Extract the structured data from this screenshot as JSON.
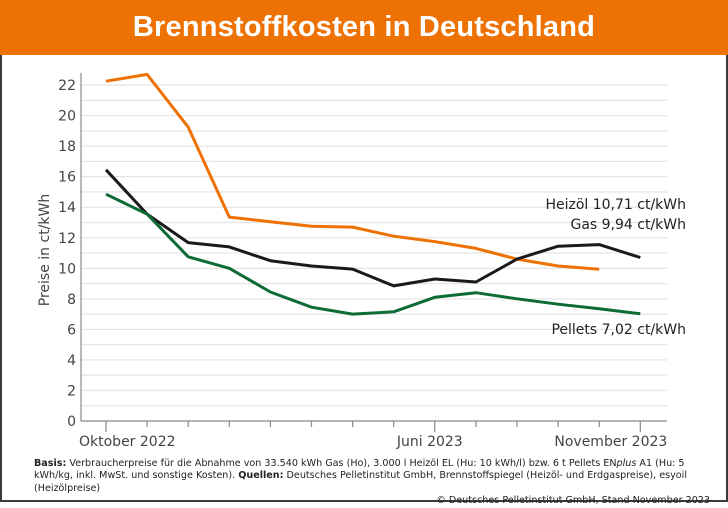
{
  "chart_data": {
    "type": "line",
    "title": "Brennstoffkosten in Deutschland",
    "xlabel": "",
    "ylabel": "Preise in ct/kWh",
    "ylim": [
      0,
      22.8
    ],
    "yticks": [
      0,
      2,
      4,
      6,
      8,
      10,
      12,
      14,
      16,
      18,
      20,
      22
    ],
    "grid": true,
    "x": [
      "Okt 2022",
      "Nov 2022",
      "Dez 2022",
      "Jan 2023",
      "Feb 2023",
      "Mär 2023",
      "Apr 2023",
      "Mai 2023",
      "Jun 2023",
      "Jul 2023",
      "Aug 2023",
      "Sep 2023",
      "Okt 2023",
      "Nov 2023"
    ],
    "xtick_labels": [
      {
        "index": 0,
        "label": "Oktober 2022"
      },
      {
        "index": 8,
        "label": "Juni 2023"
      },
      {
        "index": 13,
        "label": "November 2023"
      }
    ],
    "series": [
      {
        "name": "Gas",
        "color": "#ee7203",
        "values": [
          22.25,
          22.7,
          19.25,
          13.35,
          13.05,
          12.75,
          12.7,
          12.1,
          11.75,
          11.3,
          10.6,
          10.15,
          9.94,
          null
        ],
        "end_label": "Gas 9,94 ct/kWh"
      },
      {
        "name": "Heizöl",
        "color": "#1a1a1a",
        "values": [
          16.45,
          13.55,
          11.68,
          11.4,
          10.5,
          10.15,
          9.95,
          8.85,
          9.3,
          9.1,
          10.6,
          11.45,
          11.55,
          10.71
        ],
        "end_label": "Heizöl 10,71 ct/kWh"
      },
      {
        "name": "Pellets",
        "color": "#0d6b35",
        "values": [
          14.85,
          13.55,
          10.75,
          10.0,
          8.45,
          7.45,
          7.0,
          7.15,
          8.1,
          8.4,
          8.0,
          7.65,
          7.35,
          7.02
        ],
        "end_label": "Pellets 7,02 ct/kWh"
      }
    ]
  },
  "colors": {
    "header_band": "#ee7203",
    "gridline": "#e6e6e6",
    "axis": "#888888"
  },
  "footer": {
    "basis_label": "Basis:",
    "basis_text": " Verbraucherpreise für die Abnahme von 33.540 kWh Gas (Ho), 3.000 l Heizöl EL (Hu: 10 kWh/l) bzw. 6 t Pellets EN",
    "basis_italic": "plus",
    "basis_text2": " A1 (Hu: 5 kWh/kg, inkl. MwSt. und sonstige Kosten). ",
    "sources_label": "Quellen:",
    "sources_text": " Deutsches Pelletinstitut GmbH, Brennstoffspiegel (Heizöl- und Erdgaspreise), esyoil (Heizölpreise)",
    "copyright": "© Deutsches Pelletinstitut GmbH, Stand November 2023"
  }
}
